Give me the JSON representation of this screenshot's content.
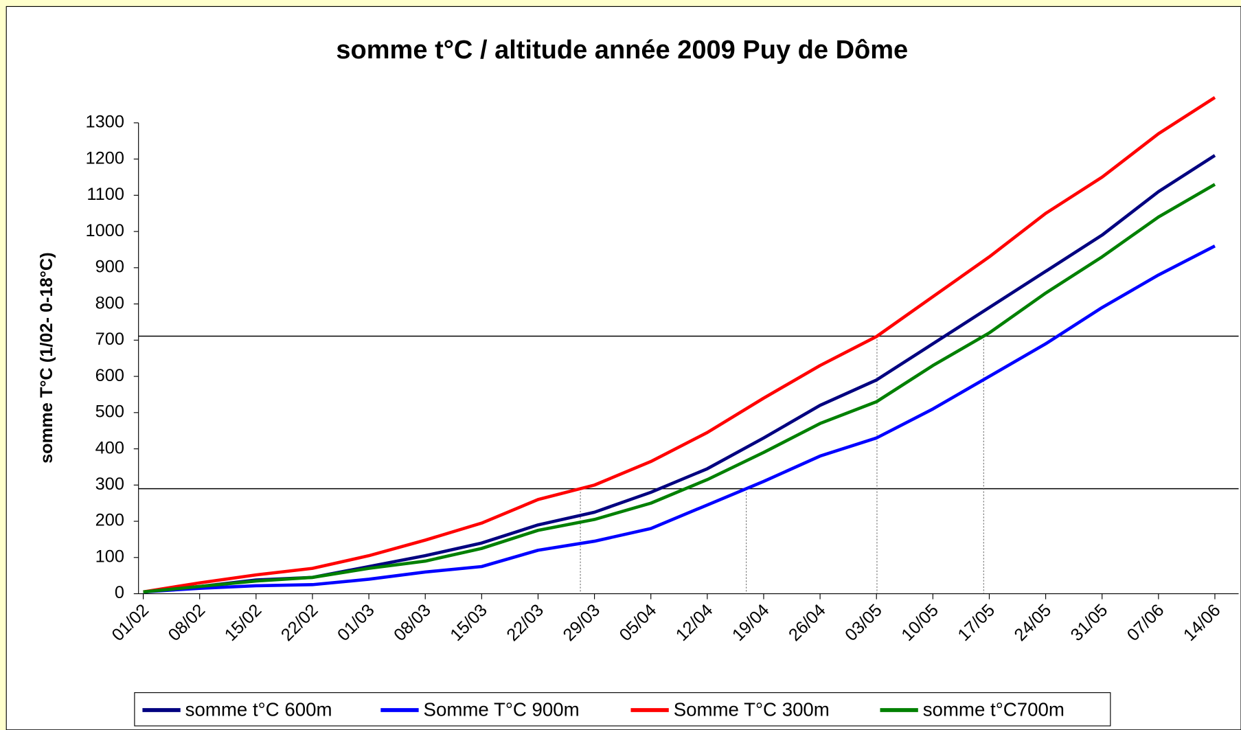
{
  "chart_data": {
    "type": "line",
    "title": "somme t°C / altitude année 2009 Puy de Dôme",
    "ylabel": "somme T°C (1/02- 0-18°C)",
    "categories": [
      "01/02",
      "08/02",
      "15/02",
      "22/02",
      "01/03",
      "08/03",
      "15/03",
      "22/03",
      "29/03",
      "05/04",
      "12/04",
      "19/04",
      "26/04",
      "03/05",
      "10/05",
      "17/05",
      "24/05",
      "31/05",
      "07/06",
      "14/06"
    ],
    "series": [
      {
        "name": "somme t°C 600m",
        "color": "#000080",
        "values": [
          5,
          20,
          38,
          45,
          75,
          105,
          140,
          190,
          225,
          280,
          345,
          430,
          520,
          590,
          690,
          790,
          890,
          990,
          1110,
          1210
        ]
      },
      {
        "name": "Somme T°C 900m",
        "color": "#0000ff",
        "values": [
          5,
          15,
          22,
          25,
          40,
          60,
          75,
          120,
          145,
          180,
          245,
          310,
          380,
          430,
          510,
          600,
          690,
          790,
          880,
          960
        ]
      },
      {
        "name": "Somme T°C 300m",
        "color": "#ff0000",
        "values": [
          5,
          30,
          52,
          70,
          105,
          148,
          195,
          260,
          300,
          365,
          445,
          540,
          630,
          710,
          820,
          930,
          1050,
          1150,
          1270,
          1370
        ]
      },
      {
        "name": "somme t°C700m",
        "color": "#008000",
        "values": [
          5,
          20,
          35,
          45,
          70,
          90,
          125,
          175,
          205,
          250,
          315,
          390,
          470,
          530,
          630,
          720,
          830,
          930,
          1040,
          1130
        ]
      }
    ],
    "reference_y": [
      290,
      711
    ],
    "ylim": [
      0,
      1300
    ],
    "yticks": [
      0,
      100,
      200,
      300,
      400,
      500,
      600,
      700,
      800,
      900,
      1000,
      1100,
      1200,
      1300
    ]
  }
}
